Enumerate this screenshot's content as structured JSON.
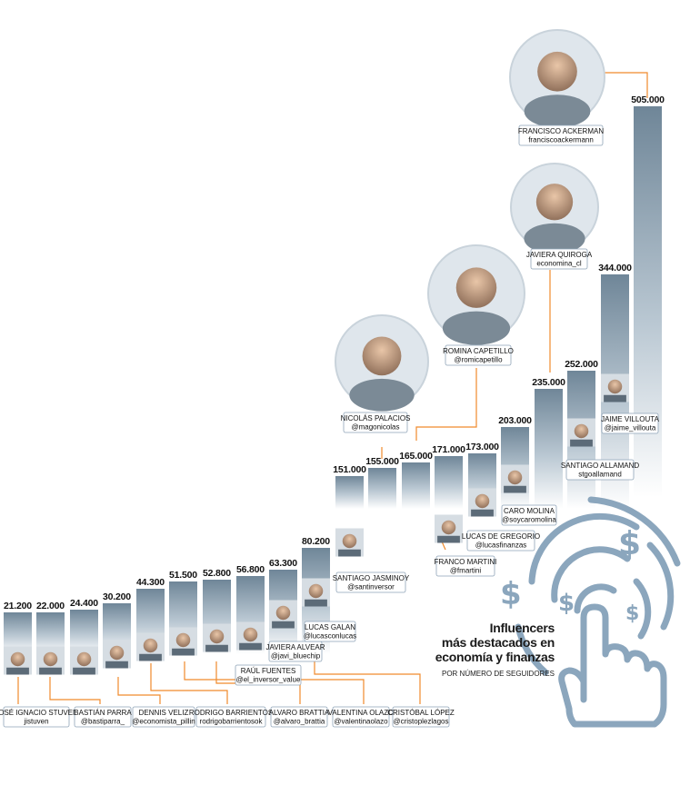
{
  "title_lines": [
    "Influencers",
    "más destacados en",
    "economía y finanzas"
  ],
  "subtitle": "POR NÚMERO DE SEGUIDORES",
  "colors": {
    "bar_dark": "#6f8698",
    "bar_light": "#ffffff",
    "connector": "#f08a2c",
    "label_border": "#8fa4b8",
    "icon": "#8ba6bd"
  },
  "icon": "hand-with-dollar-signs-icon",
  "chart_data": {
    "type": "bar",
    "ylabel": "",
    "xlabel": "",
    "ylim": [
      0,
      510000
    ],
    "value_labels": [
      "21.200",
      "22.000",
      "24.400",
      "30.200",
      "44.300",
      "51.500",
      "52.800",
      "56.800",
      "63.300",
      "80.200",
      "151.000",
      "155.000",
      "165.000",
      "171.000",
      "173.000",
      "203.000",
      "235.000",
      "252.000",
      "344.000",
      "505.000"
    ],
    "values": [
      21200,
      22000,
      24400,
      30200,
      44300,
      51500,
      52800,
      56800,
      63300,
      80200,
      151000,
      155000,
      165000,
      171000,
      173000,
      203000,
      235000,
      252000,
      344000,
      505000
    ],
    "people": [
      {
        "name": "JOSÉ IGNACIO STUVEN",
        "handle": "jistuven"
      },
      {
        "name": "BASTIÁN PARRA",
        "handle": "@bastiparra_"
      },
      {
        "name": "",
        "handle": ""
      },
      {
        "name": "DENNIS VELIZ",
        "handle": "@economista_pillin"
      },
      {
        "name": "RODRIGO BARRIENTOS",
        "handle": "rodrigobarrientosok"
      },
      {
        "name": "VALENTINA OLAZO",
        "handle": "@valentinaolazo"
      },
      {
        "name": "CRISTÓBAL LÓPEZ",
        "handle": "@cristoplezlagos"
      },
      {
        "name": "RAÚL FUENTES",
        "handle": "@el_inversor_value"
      },
      {
        "name": "JAVIERA ALVEAR",
        "handle": "@javi_bluechip"
      },
      {
        "name": "LUCAS GALAN",
        "handle": "@lucasconlucas"
      },
      {
        "name": "SANTIAGO JASMINOY",
        "handle": "@santinversor"
      },
      {
        "name": "NICOLÁS PALACIOS",
        "handle": "@magonicolas"
      },
      {
        "name": "ROMINA CAPETILLO",
        "handle": "@romicapetillo"
      },
      {
        "name": "FRANCO MARTINI",
        "handle": "@fmartini"
      },
      {
        "name": "LUCAS DE GREGORIO",
        "handle": "@lucasfinanzas"
      },
      {
        "name": "CARO MOLINA",
        "handle": "@soycaromolina"
      },
      {
        "name": "JAVIERA QUIROGA",
        "handle": "economina_cl"
      },
      {
        "name": "SANTIAGO ALLAMAND",
        "handle": "stgoallamand"
      },
      {
        "name": "JAIME VILLOUTA",
        "handle": "@jaime_villouta"
      },
      {
        "name": "FRANCISCO ACKERMAN",
        "handle": "franciscoackermann"
      }
    ],
    "extra_label": {
      "name": "ALVARO BRATTIA",
      "handle": "@alvaro_brattia"
    }
  }
}
